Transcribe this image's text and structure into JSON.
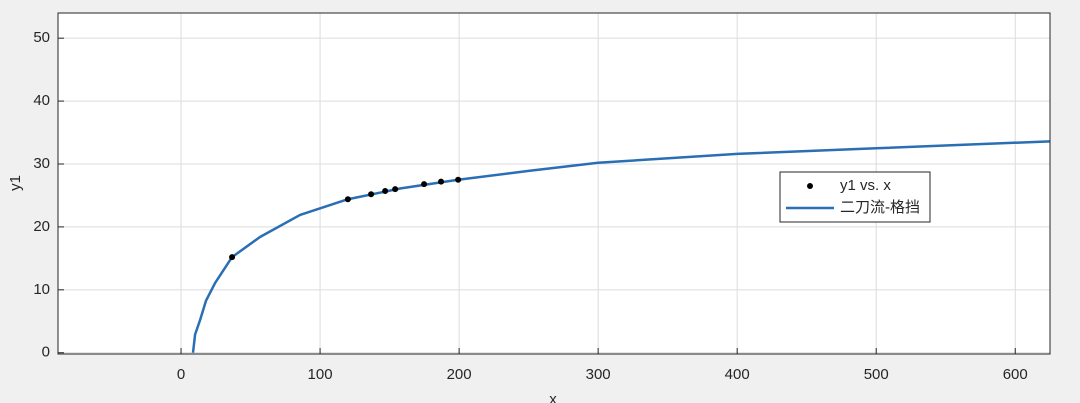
{
  "chart_data": {
    "type": "line",
    "xlabel": "x",
    "ylabel": "y1",
    "xlim": [
      -88.5,
      625
    ],
    "ylim": [
      -0.2,
      54
    ],
    "xticks": [
      0,
      100,
      200,
      300,
      400,
      500,
      600
    ],
    "yticks": [
      0,
      10,
      20,
      30,
      40,
      50
    ],
    "grid": true,
    "legend": "right",
    "series": [
      {
        "name": "y1 vs. x",
        "type": "scatter",
        "color": "#000000",
        "x": [
          36.7,
          120,
          136.7,
          146.8,
          154,
          174.8,
          187,
          199.3
        ],
        "values": [
          15.2,
          24.4,
          25.2,
          25.7,
          26.0,
          26.8,
          27.2,
          27.5
        ]
      },
      {
        "name": "二刀流-格挡",
        "type": "line",
        "color": "#2a6eb4",
        "x": [
          8.6,
          10.1,
          13.7,
          18,
          24.5,
          36.7,
          56.8,
          85.6,
          120,
          157.5,
          199.3,
          250,
          300,
          400,
          500,
          625
        ],
        "values": [
          0,
          2.9,
          5.2,
          8.3,
          11.1,
          15.2,
          18.4,
          21.9,
          24.4,
          26.1,
          27.5,
          28.9,
          30.2,
          31.6,
          32.5,
          33.6
        ]
      }
    ]
  }
}
